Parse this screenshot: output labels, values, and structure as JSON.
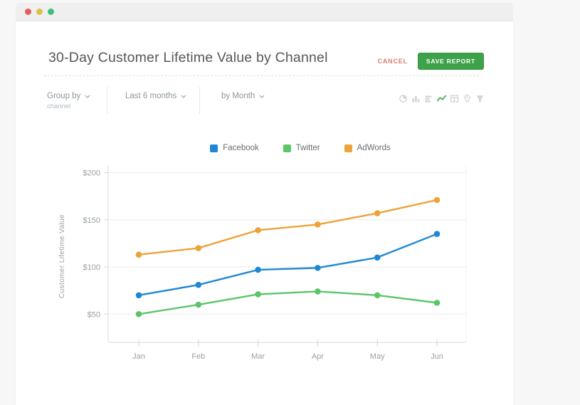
{
  "window": {
    "traffic_lights": [
      "close",
      "minimize",
      "zoom"
    ]
  },
  "header": {
    "title": "30-Day Customer Lifetime Value by Channel",
    "cancel_label": "CANCEL",
    "save_label": "SAVE REPORT"
  },
  "filters": {
    "group_by": {
      "label": "Group by",
      "value": "channel"
    },
    "date_range": {
      "value": "Last 6 months"
    },
    "interval": {
      "value": "by Month"
    },
    "view_options": [
      "pie-chart",
      "bar-chart",
      "horizontal-bar-chart",
      "line-chart",
      "table",
      "pin",
      "funnel"
    ],
    "active_view": "line-chart",
    "active_view_color": "#44a455",
    "inactive_view_color": "#cfd4d7"
  },
  "chart_data": {
    "type": "line",
    "categories": [
      "Jan",
      "Feb",
      "Mar",
      "Apr",
      "May",
      "Jun"
    ],
    "series": [
      {
        "name": "Facebook",
        "color": "#1f88d2",
        "values": [
          70,
          81,
          97,
          99,
          110,
          135
        ]
      },
      {
        "name": "Twitter",
        "color": "#5dc569",
        "values": [
          50,
          60,
          71,
          74,
          70,
          62
        ]
      },
      {
        "name": "AdWords",
        "color": "#eca338",
        "values": [
          113,
          120,
          139,
          145,
          157,
          171
        ]
      }
    ],
    "ylabel": "Customer Lifetime Value",
    "xlabel": "",
    "y_ticks": [
      200,
      150,
      100,
      50
    ],
    "y_tick_prefix": "$",
    "ylim": [
      20,
      208
    ],
    "grid": true,
    "legend_position": "top"
  }
}
